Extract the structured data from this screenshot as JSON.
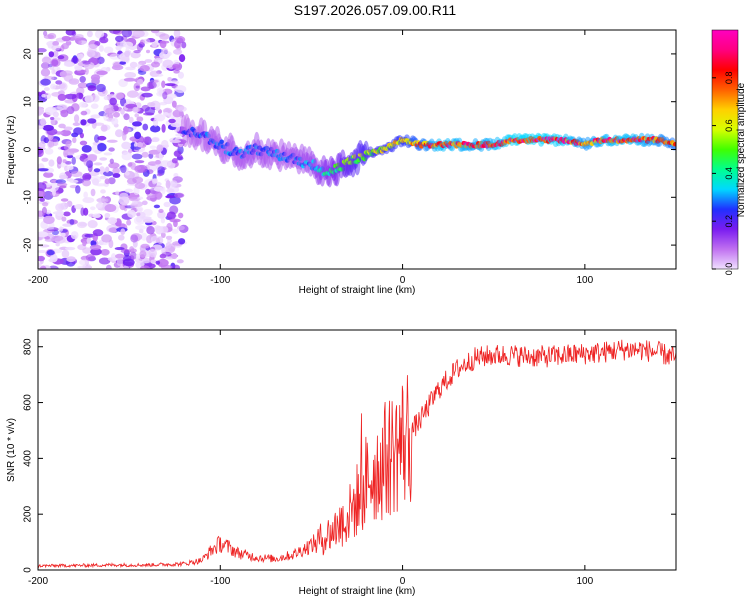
{
  "title": "S197.2026.057.09.00.R11",
  "chart_data": [
    {
      "type": "heatmap",
      "title": "S197.2026.057.09.00.R11",
      "xlabel": "Height of straight line (km)",
      "ylabel": "Frequency (Hz)",
      "xlim": [
        -200,
        150
      ],
      "ylim": [
        -25,
        25
      ],
      "xticks": [
        "-200",
        "-100",
        "0",
        "100"
      ],
      "xtick_values": [
        -200,
        -100,
        0,
        100
      ],
      "yticks": [
        "-20",
        "-10",
        "0",
        "10",
        "20"
      ],
      "ytick_values": [
        -20,
        -10,
        0,
        10,
        20
      ],
      "colorbar": {
        "label": "Normalized spectral amplitude",
        "range": [
          0,
          1
        ],
        "ticks": [
          "0.0",
          "0.2",
          "0.4",
          "0.6",
          "0.8"
        ],
        "tick_values": [
          0.0,
          0.2,
          0.4,
          0.6,
          0.8
        ],
        "colors": [
          "#f0e0ff",
          "#c070f0",
          "#7a1cf0",
          "#2030ff",
          "#00d8ff",
          "#00ff90",
          "#40ff00",
          "#d8ff00",
          "#ffd000",
          "#ff6000",
          "#ff0000",
          "#ff0080",
          "#ff00c0"
        ]
      },
      "ridge": {
        "x": [
          -120,
          -110,
          -100,
          -90,
          -80,
          -70,
          -60,
          -50,
          -40,
          -30,
          -20,
          -10,
          0,
          10,
          20,
          30,
          40,
          50,
          60,
          70,
          80,
          90,
          100,
          110,
          120,
          130,
          140,
          150
        ],
        "freq": [
          4,
          3,
          1,
          -1,
          0,
          -1,
          -2,
          -3,
          -5,
          -3,
          -1,
          0,
          2,
          1,
          1,
          1,
          1,
          1,
          2,
          2,
          2,
          2,
          1,
          2,
          2,
          2,
          2,
          1
        ],
        "amplitude": [
          0.25,
          0.28,
          0.3,
          0.3,
          0.32,
          0.3,
          0.3,
          0.35,
          0.45,
          0.55,
          0.6,
          0.65,
          0.7,
          0.8,
          0.92,
          0.9,
          0.88,
          0.9,
          0.95,
          0.95,
          0.95,
          0.92,
          0.85,
          0.9,
          0.92,
          0.9,
          0.85,
          0.8
        ]
      },
      "noise_region_x": [
        -200,
        -120
      ]
    },
    {
      "type": "line",
      "xlabel": "Height of straight line (km)",
      "ylabel": "SNR (10 * v/v)",
      "xlim": [
        -200,
        150
      ],
      "ylim": [
        0,
        860
      ],
      "xticks": [
        "-200",
        "-100",
        "0",
        "100"
      ],
      "xtick_values": [
        -200,
        -100,
        0,
        100
      ],
      "yticks": [
        "0",
        "200",
        "400",
        "600",
        "800"
      ],
      "ytick_values": [
        0,
        200,
        400,
        600,
        800
      ],
      "color": "#ee2222",
      "series": [
        {
          "name": "SNR",
          "x": [
            -200,
            -180,
            -160,
            -140,
            -120,
            -110,
            -105,
            -100,
            -95,
            -90,
            -80,
            -70,
            -60,
            -50,
            -40,
            -30,
            -25,
            -20,
            -10,
            0,
            10,
            20,
            30,
            40,
            50,
            60,
            70,
            80,
            90,
            100,
            110,
            120,
            130,
            140,
            150
          ],
          "values": [
            15,
            16,
            18,
            18,
            22,
            35,
            70,
            95,
            80,
            60,
            45,
            40,
            55,
            90,
            130,
            190,
            250,
            320,
            390,
            460,
            540,
            650,
            720,
            760,
            770,
            770,
            765,
            765,
            770,
            775,
            780,
            790,
            790,
            780,
            760
          ]
        }
      ]
    }
  ]
}
